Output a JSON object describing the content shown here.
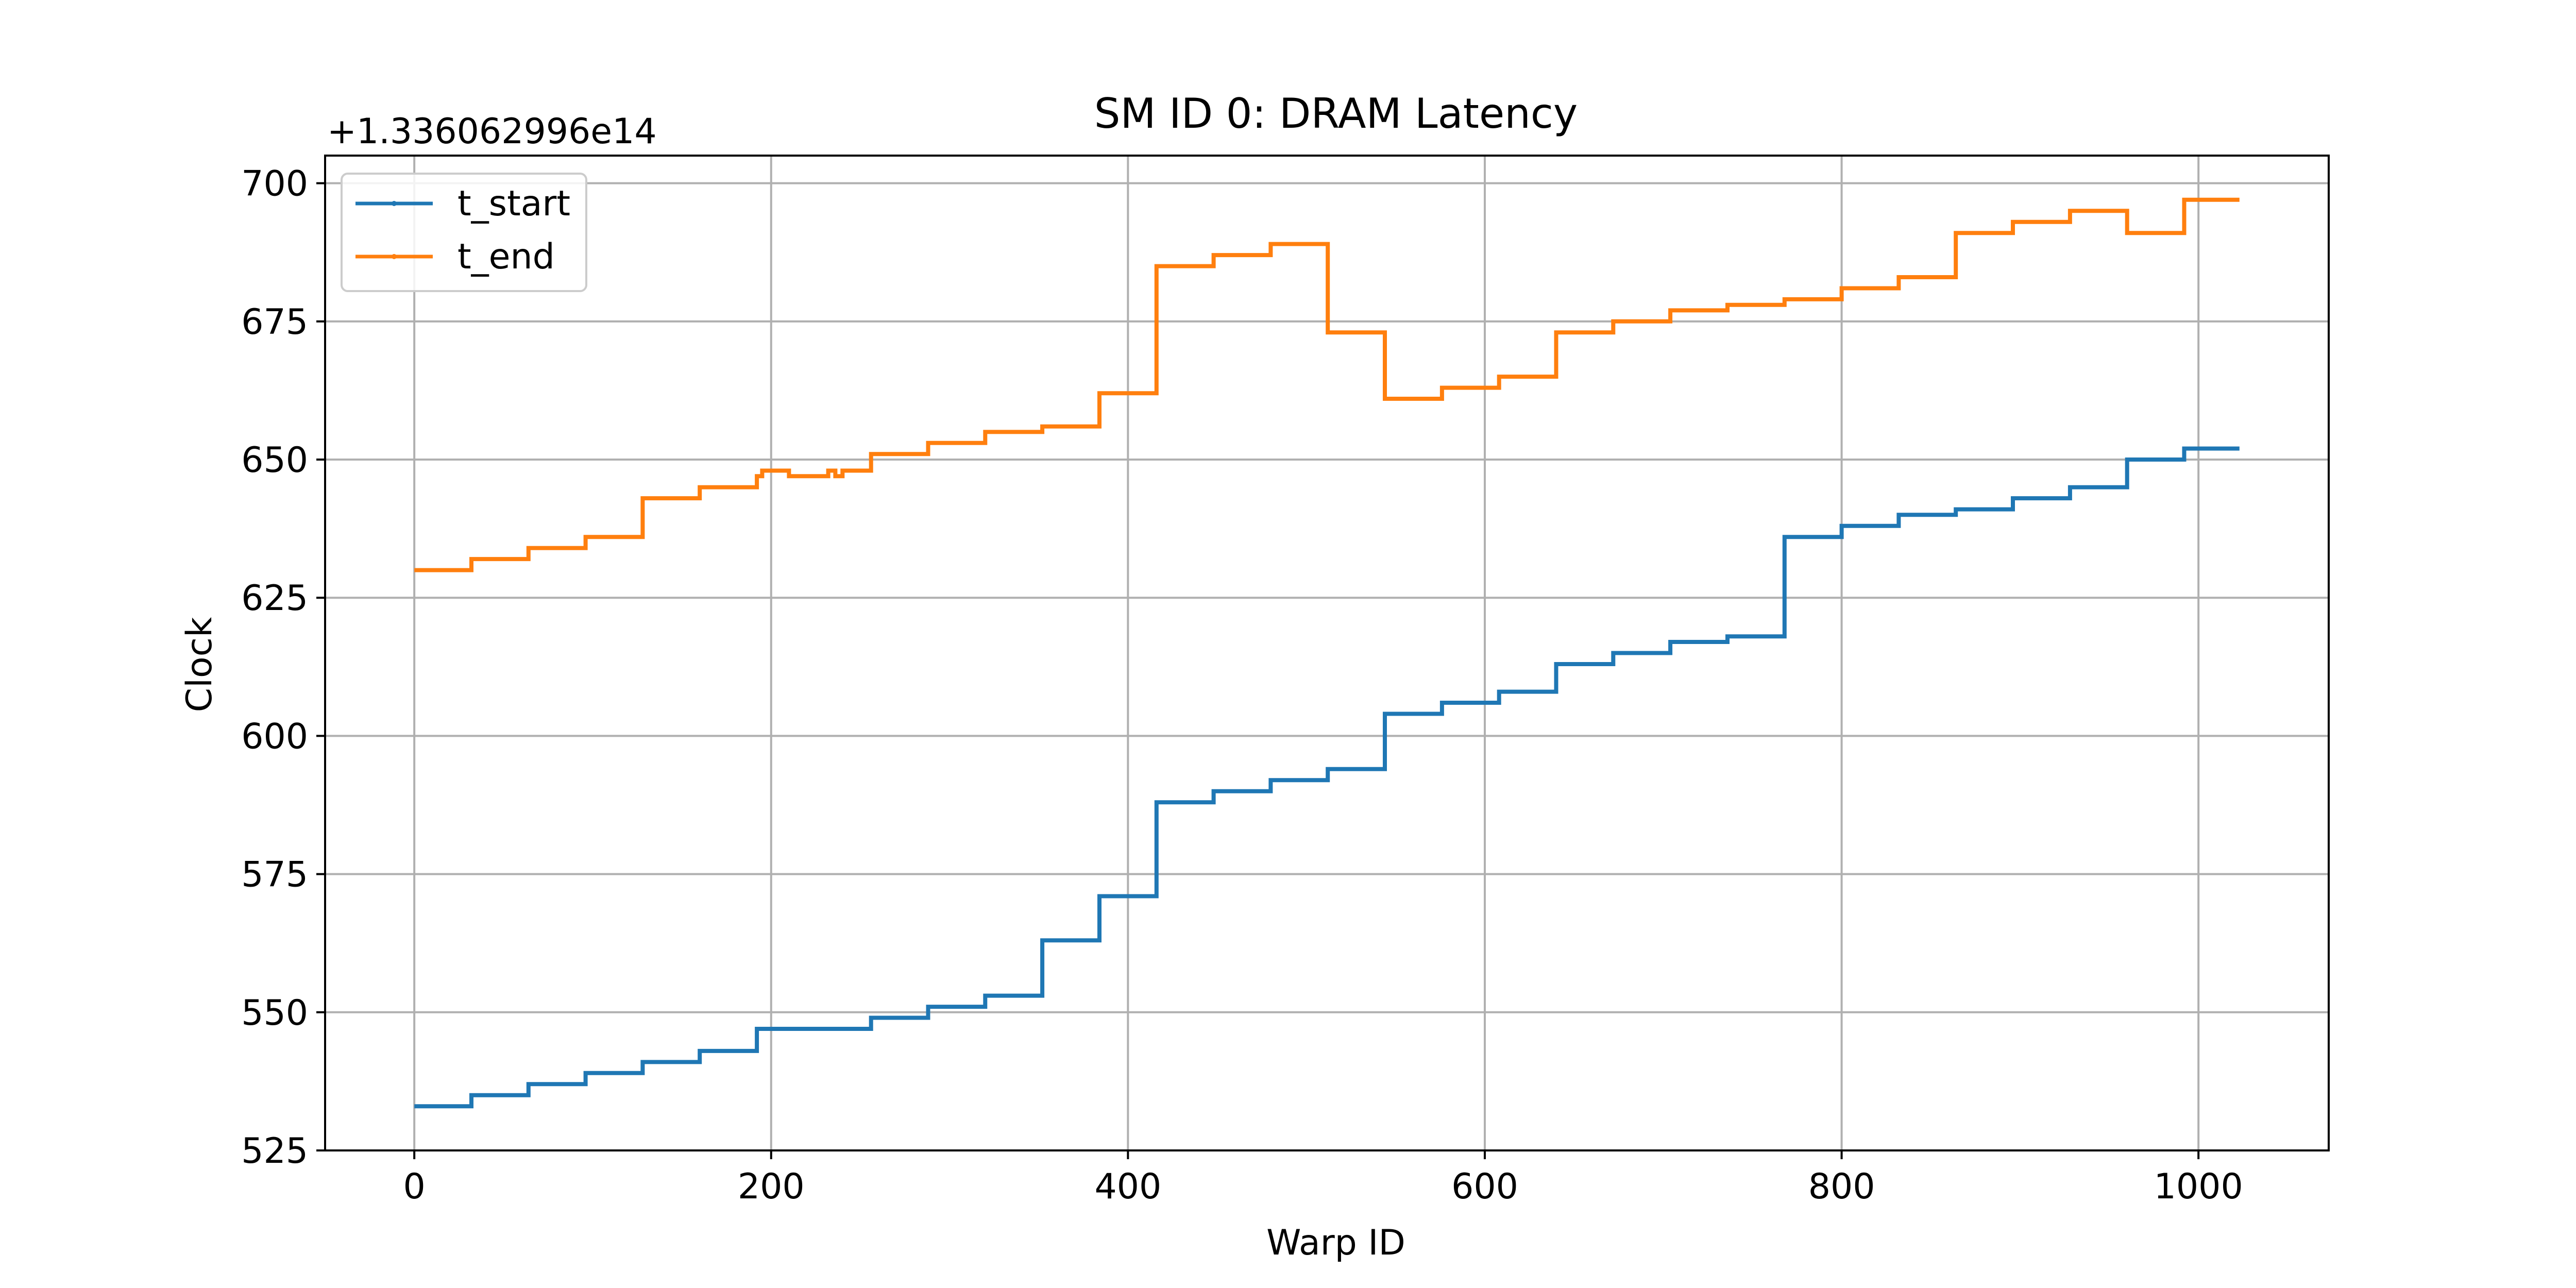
{
  "chart_data": {
    "type": "line",
    "title": "SM ID 0: DRAM Latency",
    "xlabel": "Warp ID",
    "ylabel": "Clock",
    "offset_label": "+1.336062996e14",
    "xlim": [
      -50,
      1073
    ],
    "ylim": [
      525,
      705
    ],
    "x_ticks": [
      0,
      200,
      400,
      600,
      800,
      1000
    ],
    "y_ticks": [
      525,
      550,
      575,
      600,
      625,
      650,
      675,
      700
    ],
    "grid": true,
    "legend_position": "top-left",
    "series": [
      {
        "name": "t_start",
        "color": "#1f77b4",
        "points": [
          [
            0,
            533
          ],
          [
            32,
            533
          ],
          [
            32,
            535
          ],
          [
            64,
            535
          ],
          [
            64,
            537
          ],
          [
            96,
            537
          ],
          [
            96,
            539
          ],
          [
            128,
            539
          ],
          [
            128,
            541
          ],
          [
            160,
            541
          ],
          [
            160,
            543
          ],
          [
            192,
            543
          ],
          [
            192,
            547
          ],
          [
            256,
            547
          ],
          [
            256,
            549
          ],
          [
            288,
            549
          ],
          [
            288,
            551
          ],
          [
            320,
            551
          ],
          [
            320,
            553
          ],
          [
            352,
            553
          ],
          [
            352,
            563
          ],
          [
            384,
            563
          ],
          [
            384,
            571
          ],
          [
            416,
            571
          ],
          [
            416,
            588
          ],
          [
            448,
            588
          ],
          [
            448,
            590
          ],
          [
            480,
            590
          ],
          [
            480,
            592
          ],
          [
            512,
            592
          ],
          [
            512,
            594
          ],
          [
            544,
            594
          ],
          [
            544,
            604
          ],
          [
            576,
            604
          ],
          [
            576,
            606
          ],
          [
            608,
            606
          ],
          [
            608,
            608
          ],
          [
            640,
            608
          ],
          [
            640,
            613
          ],
          [
            672,
            613
          ],
          [
            672,
            615
          ],
          [
            704,
            615
          ],
          [
            704,
            617
          ],
          [
            736,
            617
          ],
          [
            736,
            618
          ],
          [
            768,
            618
          ],
          [
            768,
            636
          ],
          [
            800,
            636
          ],
          [
            800,
            638
          ],
          [
            832,
            638
          ],
          [
            832,
            640
          ],
          [
            864,
            640
          ],
          [
            864,
            641
          ],
          [
            896,
            641
          ],
          [
            896,
            643
          ],
          [
            928,
            643
          ],
          [
            928,
            645
          ],
          [
            960,
            645
          ],
          [
            960,
            650
          ],
          [
            992,
            650
          ],
          [
            992,
            652
          ],
          [
            1023,
            652
          ]
        ]
      },
      {
        "name": "t_end",
        "color": "#ff7f0e",
        "points": [
          [
            0,
            630
          ],
          [
            32,
            630
          ],
          [
            32,
            632
          ],
          [
            64,
            632
          ],
          [
            64,
            634
          ],
          [
            96,
            634
          ],
          [
            96,
            636
          ],
          [
            128,
            636
          ],
          [
            128,
            643
          ],
          [
            160,
            643
          ],
          [
            160,
            645
          ],
          [
            192,
            645
          ],
          [
            192,
            647
          ],
          [
            195,
            647
          ],
          [
            195,
            648
          ],
          [
            210,
            648
          ],
          [
            210,
            647
          ],
          [
            232,
            647
          ],
          [
            232,
            648
          ],
          [
            236,
            648
          ],
          [
            236,
            647
          ],
          [
            240,
            647
          ],
          [
            240,
            648
          ],
          [
            256,
            648
          ],
          [
            256,
            651
          ],
          [
            288,
            651
          ],
          [
            288,
            653
          ],
          [
            320,
            653
          ],
          [
            320,
            655
          ],
          [
            352,
            655
          ],
          [
            352,
            656
          ],
          [
            384,
            656
          ],
          [
            384,
            662
          ],
          [
            416,
            662
          ],
          [
            416,
            685
          ],
          [
            448,
            685
          ],
          [
            448,
            687
          ],
          [
            480,
            687
          ],
          [
            480,
            689
          ],
          [
            512,
            689
          ],
          [
            512,
            673
          ],
          [
            544,
            673
          ],
          [
            544,
            661
          ],
          [
            576,
            661
          ],
          [
            576,
            663
          ],
          [
            608,
            663
          ],
          [
            608,
            665
          ],
          [
            640,
            665
          ],
          [
            640,
            673
          ],
          [
            672,
            673
          ],
          [
            672,
            675
          ],
          [
            704,
            675
          ],
          [
            704,
            677
          ],
          [
            736,
            677
          ],
          [
            736,
            678
          ],
          [
            768,
            678
          ],
          [
            768,
            679
          ],
          [
            800,
            679
          ],
          [
            800,
            681
          ],
          [
            832,
            681
          ],
          [
            832,
            683
          ],
          [
            864,
            683
          ],
          [
            864,
            691
          ],
          [
            896,
            691
          ],
          [
            896,
            693
          ],
          [
            928,
            693
          ],
          [
            928,
            695
          ],
          [
            960,
            695
          ],
          [
            960,
            691
          ],
          [
            992,
            691
          ],
          [
            992,
            697
          ],
          [
            1023,
            697
          ]
        ]
      }
    ]
  }
}
